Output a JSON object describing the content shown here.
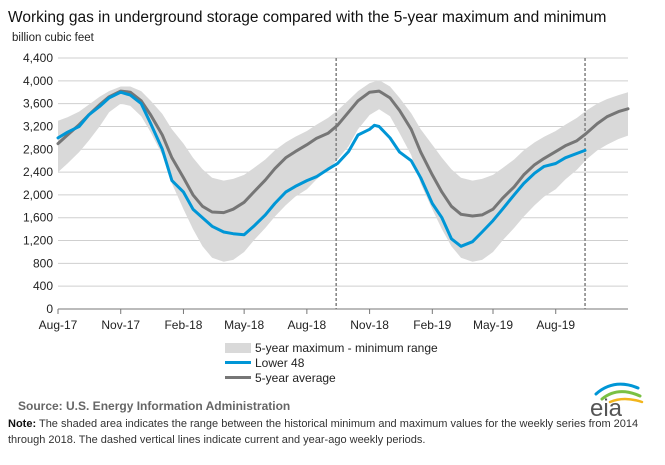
{
  "chart_data": {
    "type": "line",
    "title": "Working gas in underground  storage compared with the 5-year maximum and minimum",
    "ylabel": "billion cubic feet",
    "ylim": [
      0,
      4400
    ],
    "yticks": [
      "0",
      "400",
      "800",
      "1,200",
      "1,600",
      "2,000",
      "2,400",
      "2,800",
      "3,200",
      "3,600",
      "4,000",
      "4,400"
    ],
    "xlim": [
      "2017-08-01",
      "2019-11-15"
    ],
    "xticks": [
      {
        "date": "2017-08-01",
        "label": "Aug-17"
      },
      {
        "date": "2017-11-01",
        "label": "Nov-17"
      },
      {
        "date": "2018-02-01",
        "label": "Feb-18"
      },
      {
        "date": "2018-05-01",
        "label": "May-18"
      },
      {
        "date": "2018-08-01",
        "label": "Aug-18"
      },
      {
        "date": "2018-11-01",
        "label": "Nov-18"
      },
      {
        "date": "2019-02-01",
        "label": "Feb-19"
      },
      {
        "date": "2019-05-01",
        "label": "May-19"
      },
      {
        "date": "2019-08-01",
        "label": "Aug-19"
      }
    ],
    "grid": true,
    "legend_position": "bottom",
    "vertical_markers": [
      "2018-09-13",
      "2019-09-13"
    ],
    "range": {
      "name": "5-year maximum - minimum range",
      "color": "#d9d9d9",
      "x": [
        "2017-08-01",
        "2017-08-15",
        "2017-09-01",
        "2017-09-15",
        "2017-10-01",
        "2017-10-15",
        "2017-11-01",
        "2017-11-15",
        "2017-12-01",
        "2017-12-15",
        "2018-01-01",
        "2018-01-15",
        "2018-02-01",
        "2018-02-15",
        "2018-03-01",
        "2018-03-15",
        "2018-04-01",
        "2018-04-15",
        "2018-05-01",
        "2018-05-15",
        "2018-06-01",
        "2018-06-15",
        "2018-07-01",
        "2018-07-15",
        "2018-08-01",
        "2018-08-15",
        "2018-09-01",
        "2018-09-15",
        "2018-10-01",
        "2018-10-15",
        "2018-11-01",
        "2018-11-15",
        "2018-12-01",
        "2018-12-15",
        "2019-01-01",
        "2019-01-15",
        "2019-02-01",
        "2019-02-15",
        "2019-03-01",
        "2019-03-15",
        "2019-04-01",
        "2019-04-15",
        "2019-05-01",
        "2019-05-15",
        "2019-06-01",
        "2019-06-15",
        "2019-07-01",
        "2019-07-15",
        "2019-08-01",
        "2019-08-15",
        "2019-09-01",
        "2019-09-15",
        "2019-10-01",
        "2019-10-15",
        "2019-11-01",
        "2019-11-15"
      ],
      "max": [
        3300,
        3360,
        3460,
        3580,
        3720,
        3820,
        3900,
        3900,
        3820,
        3650,
        3420,
        3150,
        2900,
        2650,
        2450,
        2300,
        2250,
        2280,
        2350,
        2470,
        2620,
        2780,
        2920,
        3020,
        3120,
        3230,
        3350,
        3480,
        3660,
        3820,
        3960,
        4010,
        3900,
        3700,
        3430,
        3150,
        2880,
        2650,
        2450,
        2300,
        2250,
        2280,
        2350,
        2470,
        2620,
        2780,
        2920,
        3020,
        3120,
        3230,
        3350,
        3480,
        3600,
        3680,
        3750,
        3800
      ],
      "min": [
        2400,
        2550,
        2750,
        2950,
        3200,
        3450,
        3600,
        3560,
        3380,
        3100,
        2700,
        2200,
        1750,
        1400,
        1100,
        900,
        830,
        860,
        1000,
        1200,
        1420,
        1620,
        1820,
        1970,
        2100,
        2270,
        2440,
        2620,
        2850,
        3150,
        3400,
        3500,
        3380,
        3080,
        2700,
        2200,
        1750,
        1400,
        1100,
        900,
        830,
        860,
        1000,
        1200,
        1420,
        1620,
        1820,
        1970,
        2100,
        2270,
        2440,
        2620,
        2780,
        2880,
        2980,
        3040
      ]
    },
    "series": [
      {
        "name": "Lower 48",
        "color": "#0096d6",
        "x": [
          "2017-08-01",
          "2017-08-15",
          "2017-09-01",
          "2017-09-15",
          "2017-10-01",
          "2017-10-15",
          "2017-11-01",
          "2017-11-15",
          "2017-12-01",
          "2017-12-15",
          "2018-01-01",
          "2018-01-15",
          "2018-02-01",
          "2018-02-15",
          "2018-03-01",
          "2018-03-15",
          "2018-04-01",
          "2018-04-15",
          "2018-05-01",
          "2018-05-15",
          "2018-06-01",
          "2018-06-15",
          "2018-07-01",
          "2018-07-15",
          "2018-08-01",
          "2018-08-15",
          "2018-09-01",
          "2018-09-15",
          "2018-10-01",
          "2018-10-15",
          "2018-11-01",
          "2018-11-08",
          "2018-11-15",
          "2018-12-01",
          "2018-12-15",
          "2019-01-01",
          "2019-01-15",
          "2019-02-01",
          "2019-02-15",
          "2019-03-01",
          "2019-03-15",
          "2019-04-01",
          "2019-04-15",
          "2019-05-01",
          "2019-05-15",
          "2019-06-01",
          "2019-06-15",
          "2019-07-01",
          "2019-07-15",
          "2019-08-01",
          "2019-08-15",
          "2019-09-13"
        ],
        "values": [
          3000,
          3100,
          3200,
          3400,
          3550,
          3700,
          3800,
          3750,
          3600,
          3250,
          2800,
          2250,
          2050,
          1750,
          1600,
          1450,
          1350,
          1320,
          1300,
          1450,
          1650,
          1850,
          2050,
          2150,
          2250,
          2320,
          2450,
          2550,
          2760,
          3050,
          3150,
          3220,
          3200,
          3000,
          2750,
          2600,
          2300,
          1850,
          1600,
          1230,
          1100,
          1180,
          1350,
          1550,
          1750,
          2000,
          2200,
          2380,
          2500,
          2550,
          2650,
          2780
        ]
      },
      {
        "name": "5-year average",
        "color": "#767676",
        "x": [
          "2017-08-01",
          "2017-08-15",
          "2017-09-01",
          "2017-09-15",
          "2017-10-01",
          "2017-10-15",
          "2017-11-01",
          "2017-11-15",
          "2017-12-01",
          "2017-12-15",
          "2018-01-01",
          "2018-01-15",
          "2018-02-01",
          "2018-02-15",
          "2018-03-01",
          "2018-03-15",
          "2018-04-01",
          "2018-04-15",
          "2018-05-01",
          "2018-05-15",
          "2018-06-01",
          "2018-06-15",
          "2018-07-01",
          "2018-07-15",
          "2018-08-01",
          "2018-08-15",
          "2018-09-01",
          "2018-09-15",
          "2018-10-01",
          "2018-10-15",
          "2018-11-01",
          "2018-11-15",
          "2018-12-01",
          "2018-12-15",
          "2019-01-01",
          "2019-01-15",
          "2019-02-01",
          "2019-02-15",
          "2019-03-01",
          "2019-03-15",
          "2019-04-01",
          "2019-04-15",
          "2019-05-01",
          "2019-05-15",
          "2019-06-01",
          "2019-06-15",
          "2019-07-01",
          "2019-07-15",
          "2019-08-01",
          "2019-08-15",
          "2019-09-01",
          "2019-09-15",
          "2019-10-01",
          "2019-10-15",
          "2019-11-01",
          "2019-11-15"
        ],
        "values": [
          2900,
          3050,
          3230,
          3400,
          3580,
          3720,
          3820,
          3800,
          3650,
          3400,
          3050,
          2650,
          2300,
          2000,
          1800,
          1700,
          1690,
          1750,
          1870,
          2050,
          2260,
          2460,
          2650,
          2760,
          2880,
          2990,
          3080,
          3220,
          3450,
          3650,
          3800,
          3820,
          3700,
          3480,
          3150,
          2750,
          2350,
          2050,
          1800,
          1660,
          1630,
          1650,
          1750,
          1940,
          2140,
          2350,
          2530,
          2640,
          2760,
          2860,
          2950,
          3080,
          3250,
          3370,
          3460,
          3510
        ]
      }
    ]
  },
  "legend": {
    "range_label": "5-year maximum - minimum range",
    "lower48_label": "Lower 48",
    "avg_label": "5-year average"
  },
  "footer": {
    "source": "Source:  U.S. Energy Information Administration",
    "note_label": "Note:",
    "note_text": "The shaded area indicates the range between the historical minimum and maximum values for the weekly series from 2014 through 2018. The dashed vertical lines indicate current and year-ago weekly periods."
  },
  "logo": {
    "text": "eia"
  }
}
